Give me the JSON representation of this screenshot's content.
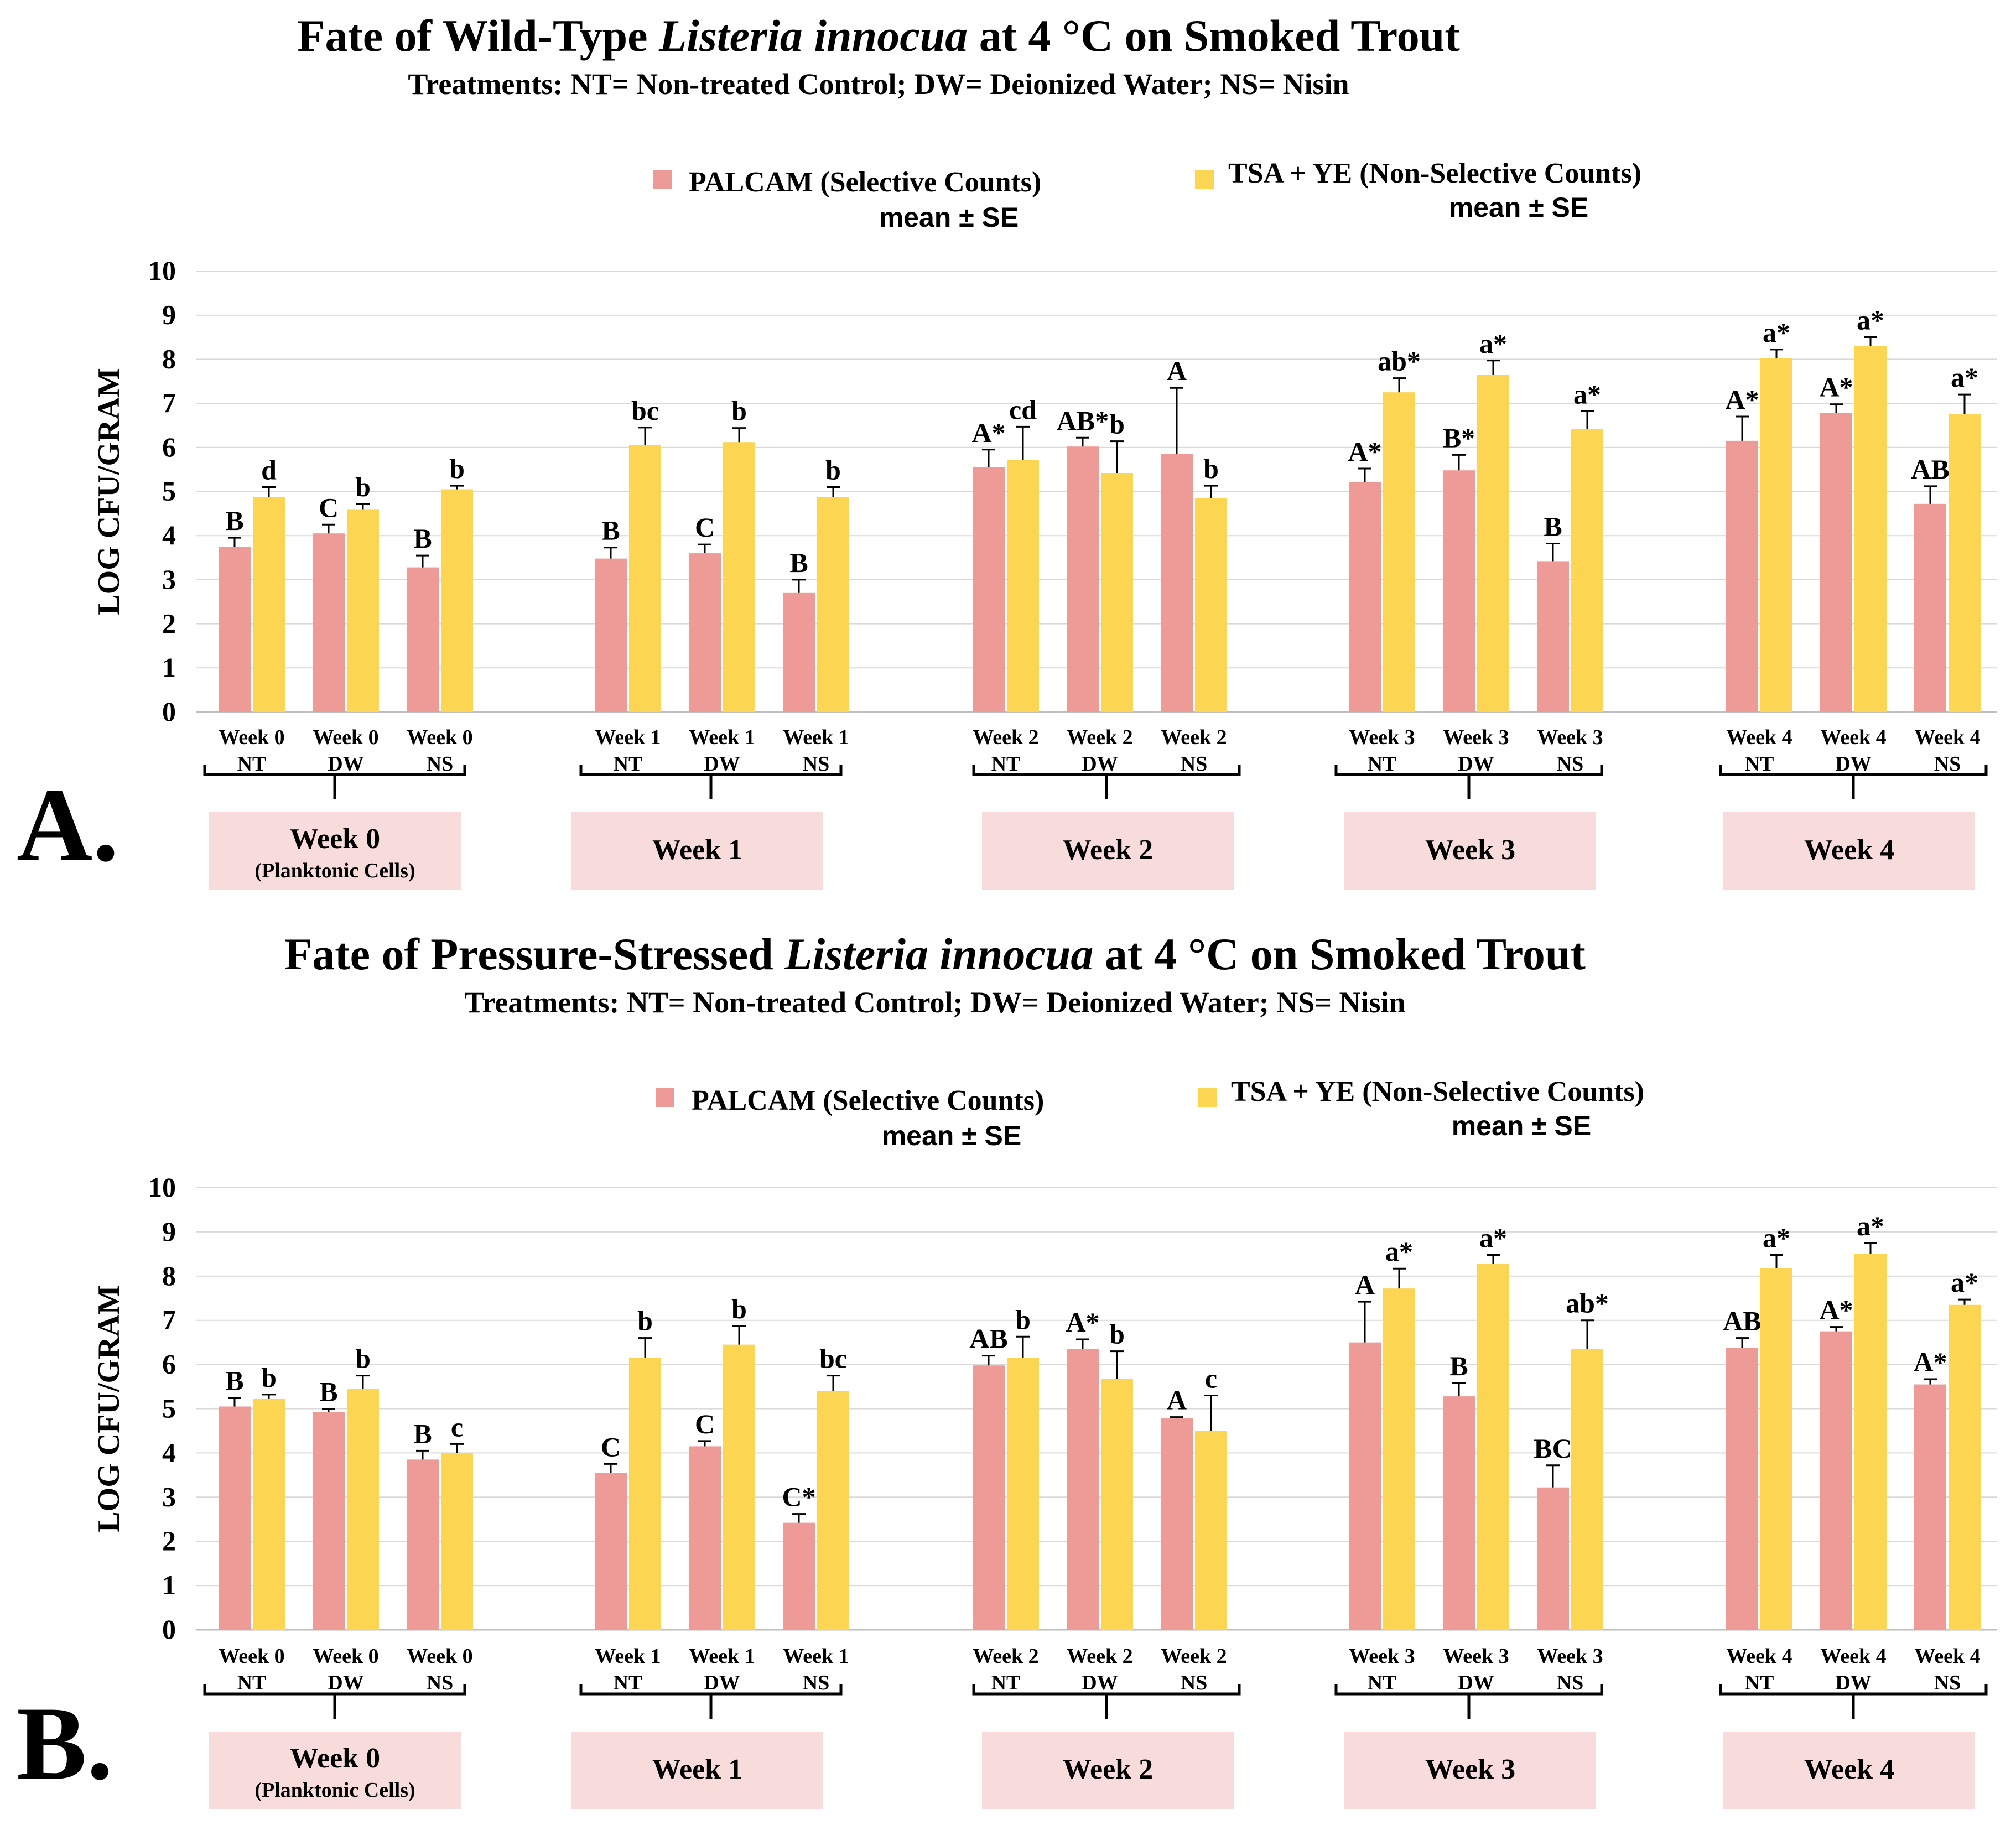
{
  "colors": {
    "palcam": "#ee9a96",
    "tsa": "#fcd552",
    "week_box": "#f8dcdc",
    "grid": "#d9d9d9",
    "text": "#000000"
  },
  "panels": [
    {
      "panel_label": "A.",
      "title_parts": [
        "Fate of Wild-Type ",
        "Listeria innocua",
        " at 4 °C on Smoked Trout"
      ],
      "subtitle": "Treatments:  NT= Non-treated  Control;  DW= Deionized Water;  NS= Nisin"
    },
    {
      "panel_label": "B.",
      "title_parts": [
        "Fate of Pressure-Stressed ",
        "Listeria innocua",
        " at 4 °C on Smoked Trout"
      ],
      "subtitle": "Treatments:  NT= Non-treated  Control;  DW= Deionized Water;  NS= Nisin"
    }
  ],
  "chart_data": [
    {
      "type": "bar",
      "title": "Fate of Wild-Type Listeria innocua at 4 °C on Smoked Trout",
      "subtitle": "Treatments:  NT= Non-treated  Control;  DW= Deionized Water;  NS= Nisin",
      "ylabel": "LOG CFU/GRAM",
      "ylim": [
        0,
        10
      ],
      "yticks": [
        "0",
        "1",
        "2",
        "3",
        "4",
        "5",
        "6",
        "7",
        "8",
        "9",
        "10"
      ],
      "grid": true,
      "legend": [
        {
          "name": "PALCAM (Selective Counts)",
          "note": "mean ± SE",
          "color": "#ee9a96"
        },
        {
          "name": "TSA + YE (Non-Selective Counts)",
          "note": "mean ± SE",
          "color": "#fcd552"
        }
      ],
      "categories": [
        [
          "Week 0",
          "NT"
        ],
        [
          "Week 0",
          "DW"
        ],
        [
          "Week 0",
          "NS"
        ],
        [
          "Week 1",
          "NT"
        ],
        [
          "Week 1",
          "DW"
        ],
        [
          "Week 1",
          "NS"
        ],
        [
          "Week 2",
          "NT"
        ],
        [
          "Week 2",
          "DW"
        ],
        [
          "Week 2",
          "NS"
        ],
        [
          "Week 3",
          "NT"
        ],
        [
          "Week 3",
          "DW"
        ],
        [
          "Week 3",
          "NS"
        ],
        [
          "Week 4",
          "NT"
        ],
        [
          "Week 4",
          "DW"
        ],
        [
          "Week 4",
          "NS"
        ]
      ],
      "groups": [
        {
          "label": "Week 0",
          "sublabel": "(Planktonic Cells)"
        },
        {
          "label": "Week 1",
          "sublabel": ""
        },
        {
          "label": "Week 2",
          "sublabel": ""
        },
        {
          "label": "Week 3",
          "sublabel": ""
        },
        {
          "label": "Week 4",
          "sublabel": ""
        }
      ],
      "series": [
        {
          "name": "PALCAM (Selective Counts)",
          "values": [
            3.75,
            4.05,
            3.28,
            3.48,
            3.6,
            2.7,
            5.55,
            6.02,
            5.85,
            5.22,
            5.48,
            3.42,
            6.15,
            6.78,
            4.72
          ],
          "errors": [
            0.2,
            0.2,
            0.27,
            0.25,
            0.2,
            0.3,
            0.4,
            0.2,
            1.5,
            0.3,
            0.35,
            0.4,
            0.55,
            0.2,
            0.4
          ],
          "letters": [
            "B",
            "C",
            "B",
            "B",
            "C",
            "B",
            "A*",
            "AB*",
            "A",
            "A*",
            "B*",
            "B",
            "A*",
            "A*",
            "AB"
          ]
        },
        {
          "name": "TSA + YE (Non-Selective Counts)",
          "values": [
            4.88,
            4.6,
            5.05,
            6.05,
            6.12,
            4.88,
            5.72,
            5.42,
            4.85,
            7.25,
            7.65,
            6.42,
            8.02,
            8.3,
            6.75
          ],
          "errors": [
            0.22,
            0.12,
            0.08,
            0.4,
            0.32,
            0.22,
            0.75,
            0.72,
            0.28,
            0.32,
            0.32,
            0.4,
            0.2,
            0.2,
            0.45
          ],
          "letters": [
            "d",
            "b",
            "b",
            "bc",
            "b",
            "b",
            "cd",
            "b",
            "b",
            "ab*",
            "a*",
            "a*",
            "a*",
            "a*",
            "a*"
          ]
        }
      ]
    },
    {
      "type": "bar",
      "title": "Fate of Pressure-Stressed Listeria innocua at 4 °C on Smoked Trout",
      "subtitle": "Treatments:  NT= Non-treated  Control;  DW= Deionized Water;  NS= Nisin",
      "ylabel": "LOG CFU/GRAM",
      "ylim": [
        0,
        10
      ],
      "yticks": [
        "0",
        "1",
        "2",
        "3",
        "4",
        "5",
        "6",
        "7",
        "8",
        "9",
        "10"
      ],
      "grid": true,
      "legend": [
        {
          "name": "PALCAM (Selective Counts)",
          "note": "mean ± SE",
          "color": "#ee9a96"
        },
        {
          "name": "TSA + YE (Non-Selective Counts)",
          "note": "mean ± SE",
          "color": "#fcd552"
        }
      ],
      "categories": [
        [
          "Week 0",
          "NT"
        ],
        [
          "Week 0",
          "DW"
        ],
        [
          "Week 0",
          "NS"
        ],
        [
          "Week 1",
          "NT"
        ],
        [
          "Week 1",
          "DW"
        ],
        [
          "Week 1",
          "NS"
        ],
        [
          "Week 2",
          "NT"
        ],
        [
          "Week 2",
          "DW"
        ],
        [
          "Week 2",
          "NS"
        ],
        [
          "Week 3",
          "NT"
        ],
        [
          "Week 3",
          "DW"
        ],
        [
          "Week 3",
          "NS"
        ],
        [
          "Week 4",
          "NT"
        ],
        [
          "Week 4",
          "DW"
        ],
        [
          "Week 4",
          "NS"
        ]
      ],
      "groups": [
        {
          "label": "Week 0",
          "sublabel": "(Planktonic Cells)"
        },
        {
          "label": "Week 1",
          "sublabel": ""
        },
        {
          "label": "Week 2",
          "sublabel": ""
        },
        {
          "label": "Week 3",
          "sublabel": ""
        },
        {
          "label": "Week 4",
          "sublabel": ""
        }
      ],
      "series": [
        {
          "name": "PALCAM (Selective Counts)",
          "values": [
            5.05,
            4.92,
            3.85,
            3.55,
            4.15,
            2.42,
            5.98,
            6.35,
            4.78,
            6.5,
            5.28,
            3.22,
            6.38,
            6.75,
            5.55
          ],
          "errors": [
            0.2,
            0.08,
            0.2,
            0.2,
            0.12,
            0.2,
            0.22,
            0.22,
            0.03,
            0.92,
            0.3,
            0.5,
            0.22,
            0.1,
            0.12
          ],
          "letters": [
            "B",
            "B",
            "B",
            "C",
            "C",
            "C*",
            "AB",
            "A*",
            "A",
            "A",
            "B",
            "BC",
            "AB",
            "A*",
            "A*"
          ]
        },
        {
          "name": "TSA + YE (Non-Selective Counts)",
          "values": [
            5.22,
            5.45,
            4.0,
            6.15,
            6.45,
            5.4,
            6.15,
            5.68,
            4.5,
            7.72,
            8.28,
            6.35,
            8.18,
            8.5,
            7.35
          ],
          "errors": [
            0.1,
            0.3,
            0.2,
            0.45,
            0.42,
            0.35,
            0.48,
            0.62,
            0.8,
            0.45,
            0.2,
            0.65,
            0.3,
            0.25,
            0.12
          ],
          "letters": [
            "b",
            "b",
            "c",
            "b",
            "b",
            "bc",
            "b",
            "b",
            "c",
            "a*",
            "a*",
            "ab*",
            "a*",
            "a*",
            "a*"
          ]
        }
      ]
    }
  ]
}
